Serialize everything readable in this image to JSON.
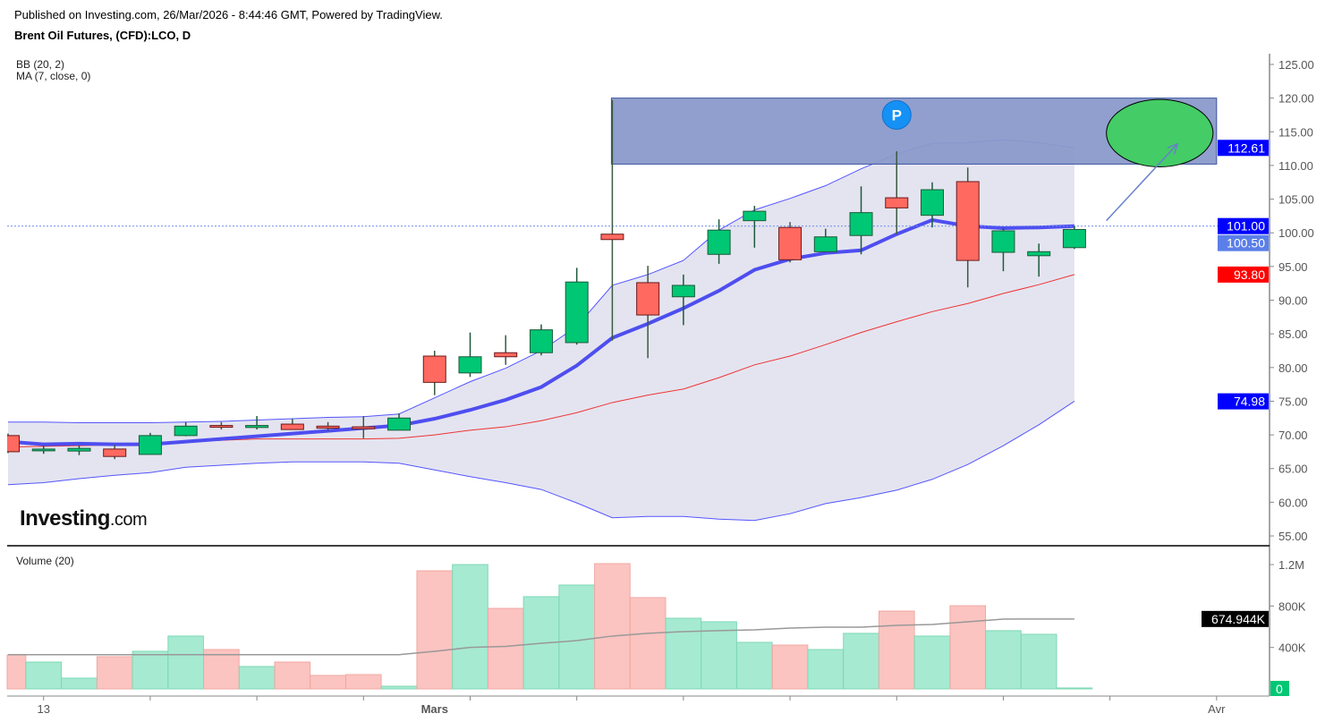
{
  "header": {
    "published": "Published on Investing.com, 26/Mar/2026 - 8:44:46 GMT, Powered by TradingView.",
    "title": "Brent Oil Futures, (CFD):LCO, D"
  },
  "indicators": {
    "bb": "BB (20, 2)",
    "ma": "MA (7, close, 0)",
    "volume": "Volume (20)"
  },
  "logo": {
    "main": "Investing",
    "suffix": ".com"
  },
  "drawings": {
    "marker_label": "P"
  },
  "colors": {
    "up": "#00c774",
    "down": "#ff6960",
    "bb_band": "#5555ff",
    "bb_basis": "#ee3333",
    "ma": "#4e4ef0",
    "fill": "#e4e4f0",
    "zone": "#8a9aca",
    "target": "#44cc66",
    "last_price": "#0000ff",
    "ma_label": "#5b7fe8",
    "basis_label": "#ff0000",
    "vol_up": "#a6ead2",
    "vol_down": "#fbc4c0",
    "vol_ma": "#999999"
  },
  "chart_data": {
    "type": "candlestick",
    "title": "Brent Oil Futures, (CFD):LCO, D",
    "ylim": [
      54,
      127
    ],
    "y_ticks": [
      "125.00",
      "120.00",
      "115.00",
      "110.00",
      "105.00",
      "100.00",
      "95.00",
      "90.00",
      "85.00",
      "80.00",
      "75.00",
      "70.00",
      "65.00",
      "60.00",
      "55.00"
    ],
    "x_labels": [
      {
        "text": "13",
        "index": 1
      },
      {
        "text": "Mars",
        "index": 12
      },
      {
        "text": "Avr",
        "index": 34
      }
    ],
    "ohlc": [
      [
        69.9,
        70.2,
        67.3,
        67.5
      ],
      [
        67.7,
        68.4,
        67.2,
        67.9
      ],
      [
        67.6,
        68.4,
        67.0,
        68.0
      ],
      [
        67.9,
        68.5,
        66.4,
        66.8
      ],
      [
        67.1,
        70.3,
        67.1,
        69.9
      ],
      [
        69.9,
        71.9,
        69.8,
        71.3
      ],
      [
        71.4,
        71.9,
        70.8,
        71.3
      ],
      [
        71.1,
        72.8,
        70.8,
        71.4
      ],
      [
        71.6,
        72.4,
        70.8,
        70.8
      ],
      [
        71.3,
        71.9,
        70.6,
        71.0
      ],
      [
        71.2,
        72.8,
        69.5,
        70.9
      ],
      [
        70.7,
        73.2,
        70.7,
        72.5
      ],
      [
        81.7,
        82.5,
        75.9,
        77.8
      ],
      [
        79.2,
        85.2,
        78.6,
        81.6
      ],
      [
        82.2,
        84.8,
        80.4,
        81.6
      ],
      [
        82.2,
        86.4,
        81.8,
        85.6
      ],
      [
        83.7,
        94.8,
        83.4,
        92.7
      ],
      [
        99.8,
        119.7,
        84.0,
        99.0
      ],
      [
        92.6,
        95.1,
        81.4,
        87.8
      ],
      [
        90.5,
        93.8,
        86.3,
        92.2
      ],
      [
        96.8,
        102.0,
        95.4,
        100.4
      ],
      [
        101.8,
        104.0,
        97.8,
        103.2
      ],
      [
        100.8,
        101.6,
        95.6,
        96.0
      ],
      [
        97.2,
        100.6,
        97.2,
        99.4
      ],
      [
        99.6,
        106.9,
        96.8,
        103.0
      ],
      [
        105.2,
        112.1,
        99.8,
        103.7
      ],
      [
        102.6,
        107.5,
        100.8,
        106.4
      ],
      [
        107.6,
        109.7,
        91.9,
        95.9
      ],
      [
        97.1,
        100.7,
        94.3,
        100.3
      ],
      [
        96.6,
        98.4,
        93.5,
        97.2
      ],
      [
        97.8,
        101.0,
        97.6,
        100.5
      ]
    ],
    "bb_upper": [
      71.9,
      71.9,
      71.8,
      71.8,
      71.8,
      71.9,
      72.0,
      72.2,
      72.4,
      72.6,
      72.7,
      73.1,
      75.5,
      77.9,
      79.9,
      82.5,
      86.1,
      92.2,
      93.8,
      95.9,
      100.4,
      103.4,
      105.1,
      107.0,
      109.5,
      111.7,
      113.3,
      113.4,
      113.8,
      113.4,
      112.6
    ],
    "bb_basis": [
      68.2,
      68.3,
      68.4,
      68.5,
      68.7,
      69.0,
      69.2,
      69.4,
      69.4,
      69.4,
      69.4,
      69.5,
      70.0,
      70.7,
      71.2,
      72.1,
      73.3,
      74.8,
      75.9,
      76.8,
      78.5,
      80.4,
      81.7,
      83.4,
      85.2,
      86.8,
      88.3,
      89.5,
      91.0,
      92.3,
      93.8
    ],
    "bb_lower": [
      62.6,
      62.9,
      63.5,
      64.0,
      64.4,
      65.2,
      65.5,
      65.8,
      66.0,
      66.0,
      66.0,
      65.8,
      64.8,
      63.8,
      62.9,
      61.9,
      59.9,
      57.7,
      57.9,
      57.9,
      57.5,
      57.3,
      58.3,
      59.8,
      60.7,
      61.8,
      63.4,
      65.6,
      68.4,
      71.5,
      75.0
    ],
    "ma7": [
      69.0,
      68.6,
      68.7,
      68.6,
      68.6,
      69.0,
      69.4,
      69.8,
      70.2,
      70.6,
      71.0,
      71.4,
      72.4,
      73.7,
      75.2,
      77.1,
      80.3,
      84.4,
      86.5,
      88.8,
      91.4,
      94.5,
      96.1,
      97.0,
      97.4,
      99.8,
      101.9,
      101.0,
      100.7,
      100.8,
      101.0
    ],
    "price_labels": [
      {
        "text": "112.61",
        "value": 112.61,
        "color_key": "last_price"
      },
      {
        "text": "101.00",
        "value": 101.0,
        "color_key": "last_price"
      },
      {
        "text": "100.50",
        "value": 100.5,
        "color_key": "ma_label"
      },
      {
        "text": "93.80",
        "value": 93.8,
        "color_key": "basis_label"
      },
      {
        "text": "74.98",
        "value": 74.98,
        "color_key": "last_price"
      }
    ],
    "horizontal_line": 101.0,
    "zone": {
      "from_index": 17,
      "to_index": 34,
      "top": 120.0,
      "bottom": 110.2
    },
    "target_ellipse": {
      "center_index": 32.4,
      "center_value": 114.8,
      "index_radius": 1.5,
      "value_radius": 5.0
    },
    "arrow": {
      "from": [
        30.9,
        101.8
      ],
      "to": [
        32.9,
        113.2
      ]
    },
    "marker": {
      "index": 25,
      "value": 117.5
    },
    "volume": {
      "ylim": [
        0,
        1300
      ],
      "y_ticks": [
        "1.2M",
        "800K",
        "400K"
      ],
      "y_tick_values": [
        1200,
        800,
        400
      ],
      "values_k": [
        328,
        259,
        104,
        311,
        363,
        510,
        380,
        216,
        259,
        130,
        138,
        26,
        1140,
        1200,
        777,
        890,
        1002,
        1209,
        881,
        682,
        648,
        449,
        423,
        380,
        536,
        751,
        510,
        803,
        562,
        527,
        9
      ],
      "direction": [
        "down",
        "up",
        "up",
        "down",
        "up",
        "up",
        "down",
        "up",
        "down",
        "down",
        "down",
        "up",
        "down",
        "up",
        "down",
        "up",
        "up",
        "down",
        "down",
        "up",
        "up",
        "up",
        "down",
        "up",
        "up",
        "down",
        "up",
        "down",
        "up",
        "up",
        "up"
      ],
      "ma20_k": [
        330,
        330,
        330,
        330,
        330,
        330,
        330,
        330,
        330,
        330,
        330,
        330,
        363,
        400,
        410,
        440,
        466,
        510,
        536,
        553,
        562,
        570,
        587,
        596,
        596,
        613,
        622,
        648,
        674,
        675,
        675
      ],
      "ma_label": "674.944K",
      "ma_label_value": 674.944,
      "last_label": "0"
    }
  }
}
